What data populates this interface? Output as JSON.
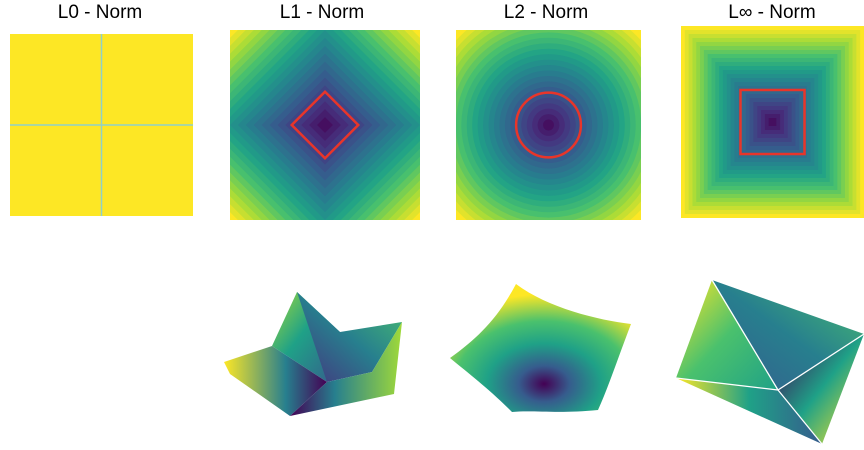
{
  "panels": [
    {
      "title": "L0 - Norm",
      "norm": "L0",
      "unit_ball": "none"
    },
    {
      "title": "L1 - Norm",
      "norm": "L1",
      "unit_ball": "diamond"
    },
    {
      "title": "L2 - Norm",
      "norm": "L2",
      "unit_ball": "circle"
    },
    {
      "title": "L∞ - Norm",
      "norm": "Linf",
      "unit_ball": "square"
    }
  ],
  "colors": {
    "l0_fill": "#fde725",
    "l0_axes": "#8fd0c9",
    "unit_ball": "#e8352a",
    "viridis": [
      "#440154",
      "#46327e",
      "#365c8d",
      "#277f8e",
      "#1fa187",
      "#4ac16d",
      "#a0da39",
      "#fde725"
    ]
  }
}
